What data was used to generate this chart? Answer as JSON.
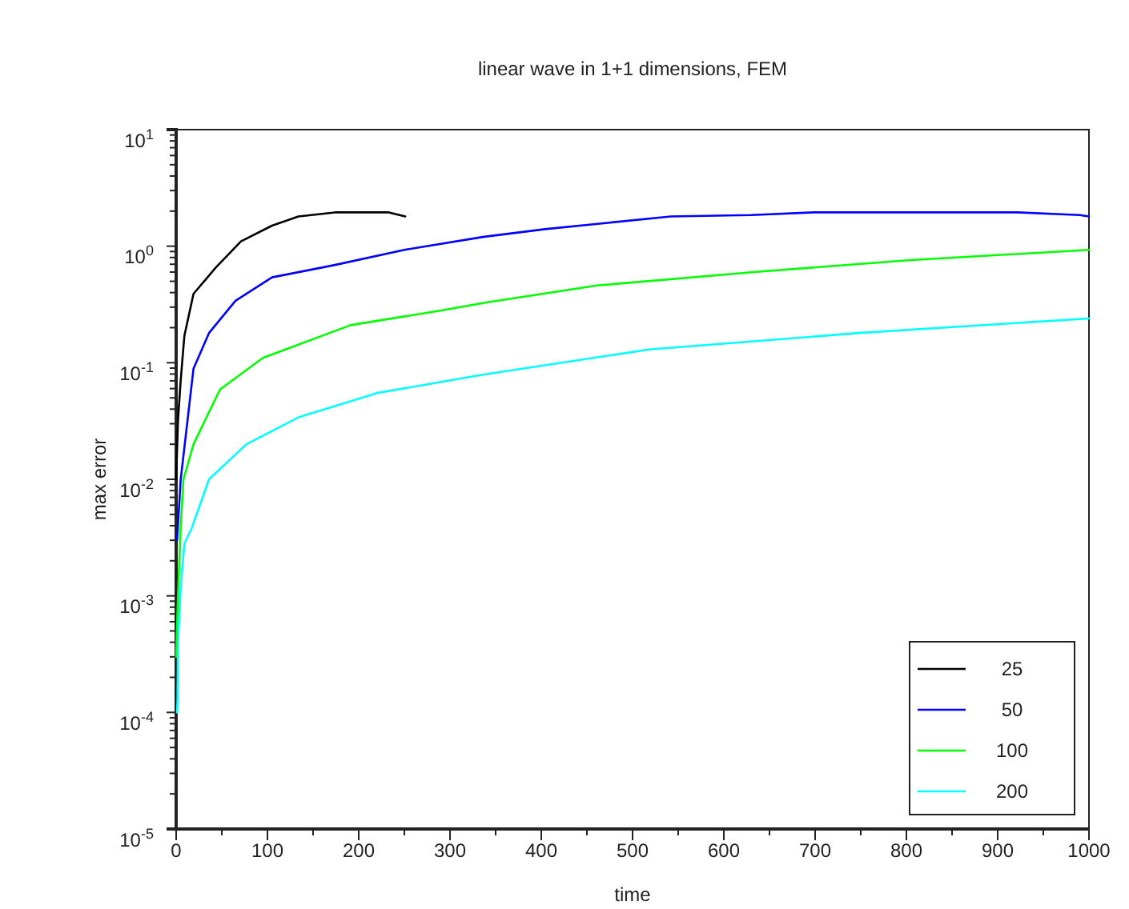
{
  "chart_data": {
    "type": "line",
    "title": "linear wave in 1+1 dimensions, FEM",
    "xlabel": "time",
    "ylabel": "max error",
    "log": "y",
    "xlim": [
      0,
      1000
    ],
    "ylim": [
      1e-05,
      10
    ],
    "xticks": [
      0,
      {
        "value": 50,
        "label": null
      },
      100,
      {
        "value": 150,
        "label": null
      },
      200,
      {
        "value": 250,
        "label": null
      },
      300,
      {
        "value": 350,
        "label": null
      },
      400,
      {
        "value": 450,
        "label": null
      },
      500,
      {
        "value": 550,
        "label": null
      },
      600,
      {
        "value": 650,
        "label": null
      },
      700,
      {
        "value": 750,
        "label": null
      },
      800,
      {
        "value": 850,
        "label": null
      },
      900,
      {
        "value": 950,
        "label": null
      },
      1000
    ],
    "yticks": [
      {
        "value": 1e-05,
        "label": "10$^{-5}$"
      },
      {
        "value": 0.0001,
        "label": "10$^{-4}$"
      },
      {
        "value": 0.001,
        "label": "10$^{-3}$"
      },
      {
        "value": 0.01,
        "label": "10$^{-2}$"
      },
      {
        "value": 0.1,
        "label": "10$^{-1}$"
      },
      {
        "value": 1,
        "label": "10$^{0}$"
      },
      {
        "value": 10,
        "label": "10$^{1}$"
      }
    ],
    "grid": false,
    "legend": "bottom right",
    "series": [
      {
        "name": "25",
        "color": "#000000",
        "x": [
          0,
          2,
          5,
          9,
          19,
          43,
          71,
          105,
          134,
          174,
          233,
          251
        ],
        "values": [
          0.01,
          0.032,
          0.071,
          0.17,
          0.39,
          0.65,
          1.1,
          1.5,
          1.8,
          1.95,
          1.95,
          1.8
        ]
      },
      {
        "name": "50",
        "color": "#0000ff",
        "x": [
          1,
          5,
          19,
          36,
          65,
          105,
          174,
          250,
          336,
          404,
          542,
          630,
          699,
          921,
          990,
          1000
        ],
        "values": [
          0.003,
          0.01,
          0.089,
          0.18,
          0.34,
          0.54,
          0.69,
          0.93,
          1.2,
          1.4,
          1.8,
          1.85,
          1.95,
          1.95,
          1.85,
          1.8
        ]
      },
      {
        "name": "100",
        "color": "#00ff00",
        "x": [
          0,
          2,
          5,
          8,
          19,
          48,
          95,
          191,
          289,
          341,
          461,
          633,
          805,
          1000
        ],
        "values": [
          0.0003,
          0.001,
          0.004,
          0.01,
          0.02,
          0.059,
          0.11,
          0.21,
          0.28,
          0.33,
          0.46,
          0.6,
          0.76,
          0.93
        ]
      },
      {
        "name": "200",
        "color": "#00ffff",
        "x": [
          1,
          1.5,
          2,
          5,
          9,
          17,
          36,
          77,
          134,
          220,
          336,
          518,
          748,
          1000
        ],
        "values": [
          0.0001,
          0.00013,
          0.0004,
          0.0012,
          0.0028,
          0.0038,
          0.01,
          0.02,
          0.034,
          0.055,
          0.079,
          0.13,
          0.18,
          0.24
        ]
      }
    ]
  }
}
